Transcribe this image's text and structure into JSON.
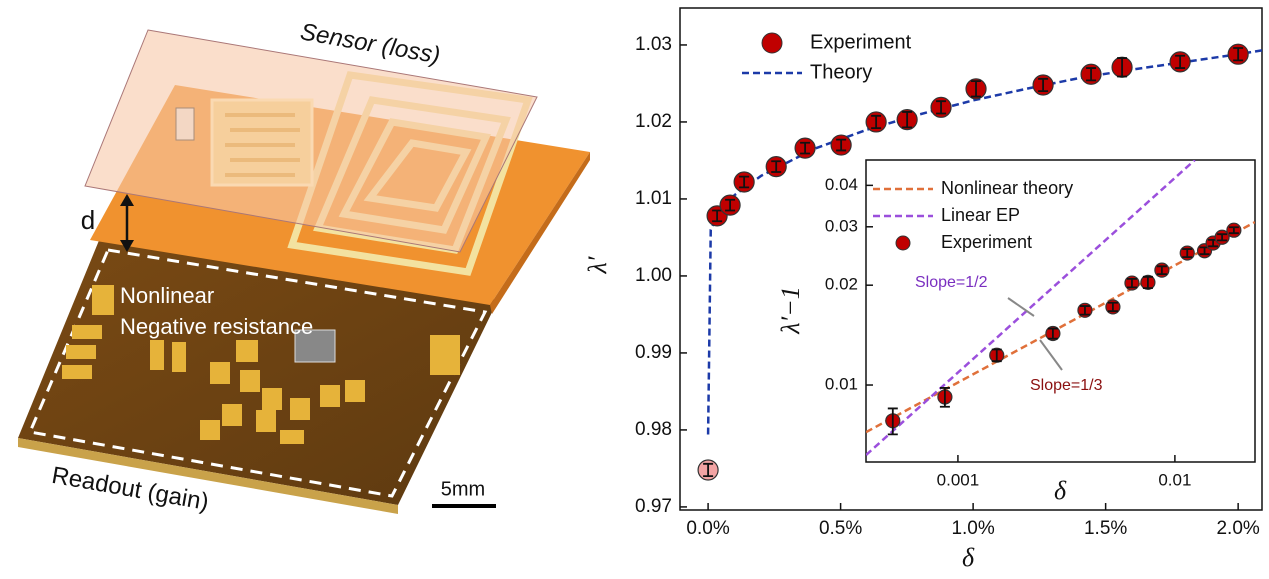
{
  "illustration": {
    "sensor_label": "Sensor (loss)",
    "gap_label": "d",
    "circuit_label": [
      "Nonlinear",
      "Negative resistance"
    ],
    "readout_label": "Readout (gain)",
    "scale_label": "5mm"
  },
  "chart_data": [
    {
      "type": "scatter",
      "xlabel": "δ",
      "ylabel": "λ′",
      "xlim": [
        -0.106,
        2.09
      ],
      "ylim": [
        0.9696,
        1.0348
      ],
      "xticks": [
        {
          "value": 0,
          "label": "0.0%"
        },
        {
          "value": 0.5,
          "label": "0.5%"
        },
        {
          "value": 1,
          "label": "1.0%"
        },
        {
          "value": 1.5,
          "label": "1.5%"
        },
        {
          "value": 2,
          "label": "2.0%"
        }
      ],
      "yticks": [
        0.97,
        0.98,
        0.99,
        {
          "value": 1,
          "label": "1.00"
        },
        1.01,
        1.02,
        1.03
      ],
      "legend": "upper left",
      "series": [
        {
          "name": "Experiment",
          "type": "scatter",
          "color": "#c00000",
          "colors": [
            "#f2a3a3",
            "#c00000",
            "#c00000",
            "#c00000",
            "#c00000",
            "#c00000",
            "#c00000",
            "#c00000",
            "#c00000",
            "#c00000",
            "#c00000",
            "#c00000",
            "#c00000",
            "#c00000",
            "#c00000",
            "#c00000"
          ],
          "x": [
            0.0,
            0.034,
            0.083,
            0.136,
            0.257,
            0.366,
            0.502,
            0.634,
            0.751,
            0.879,
            1.011,
            1.264,
            1.445,
            1.562,
            1.781,
            2.0
          ],
          "values": [
            0.9748,
            1.0078,
            1.0092,
            1.0122,
            1.0142,
            1.0166,
            1.017,
            1.02,
            1.0203,
            1.0219,
            1.0243,
            1.0248,
            1.0262,
            1.0271,
            1.0278,
            1.0288
          ],
          "errors": [
            0.0008,
            0.0007,
            0.0007,
            0.0007,
            0.0007,
            0.0007,
            0.0007,
            0.0008,
            0.001,
            0.0008,
            0.001,
            0.0008,
            0.0008,
            0.0012,
            0.0008,
            0.0008
          ]
        },
        {
          "name": "Theory",
          "type": "line",
          "color": "#1c3aa8",
          "x": [
            0,
            0.01,
            0.03,
            0.1,
            0.2,
            0.4,
            0.6,
            0.8,
            1.0,
            1.2,
            1.4,
            1.6,
            1.8,
            2.0,
            2.09
          ],
          "values": [
            0.9794,
            1.006,
            1.0075,
            1.0105,
            1.013,
            1.0165,
            1.019,
            1.021,
            1.0228,
            1.0243,
            1.0257,
            1.0268,
            1.0278,
            1.0288,
            1.0293
          ]
        }
      ]
    },
    {
      "type": "scatter",
      "xlabel": "δ",
      "ylabel": "λ′−1",
      "log_x": true,
      "log_y": true,
      "xlim": [
        0.000377,
        0.0234
      ],
      "ylim": [
        0.00586,
        0.0477
      ],
      "xticks": [
        0.001,
        0.01
      ],
      "yticks": [
        0.01,
        0.02,
        0.03,
        0.04
      ],
      "legend": "upper left",
      "annotations": [
        {
          "text": "Slope=1/2",
          "color": "#7a2fc0"
        },
        {
          "text": "Slope=1/3",
          "color": "#8b1010"
        }
      ],
      "series": [
        {
          "name": "Nonlinear theory",
          "type": "line",
          "color": "#e0703a",
          "x": [
            0.000377,
            0.0234
          ],
          "values": [
            0.00721,
            0.031
          ]
        },
        {
          "name": "Linear EP",
          "type": "line",
          "color": "#9b4fdc",
          "x": [
            0.000377,
            0.01236
          ],
          "values": [
            0.00615,
            0.0477
          ]
        },
        {
          "name": "Experiment",
          "type": "scatter",
          "color": "#c00000",
          "x": [
            0.000501,
            0.000871,
            0.00151,
            0.00274,
            0.00385,
            0.00518,
            0.00634,
            0.00751,
            0.00871,
            0.0114,
            0.0137,
            0.015,
            0.0165,
            0.0187
          ],
          "values": [
            0.0078,
            0.0092,
            0.0123,
            0.0143,
            0.0168,
            0.0172,
            0.0203,
            0.0204,
            0.0222,
            0.025,
            0.0254,
            0.0268,
            0.0279,
            0.0293
          ],
          "errors": [
            0.0007,
            0.0006,
            0.0005,
            0.0005,
            0.0005,
            0.0005,
            0.0006,
            0.0008,
            0.0006,
            0.0007,
            0.0006,
            0.0006,
            0.0006,
            0.0006
          ]
        }
      ]
    }
  ]
}
